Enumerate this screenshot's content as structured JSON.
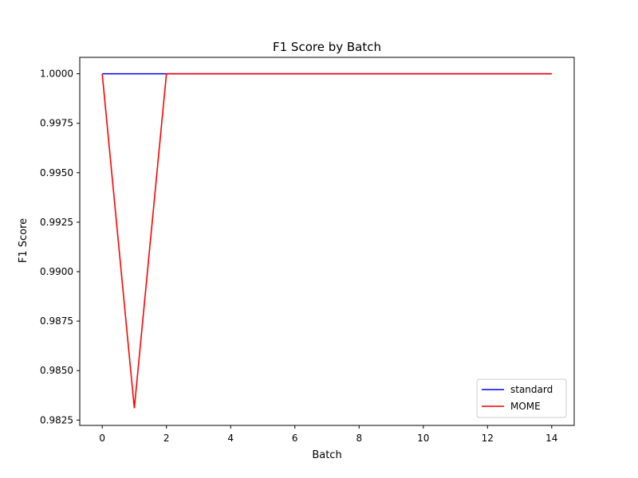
{
  "chart_data": {
    "type": "line",
    "title": "F1 Score by Batch",
    "xlabel": "Batch",
    "ylabel": "F1 Score",
    "xlim": [
      -0.7,
      14.7
    ],
    "ylim": [
      0.98223,
      1.00083
    ],
    "xticks": [
      0,
      2,
      4,
      6,
      8,
      10,
      12,
      14
    ],
    "xtick_labels": [
      "0",
      "2",
      "4",
      "6",
      "8",
      "10",
      "12",
      "14"
    ],
    "yticks": [
      0.9825,
      0.985,
      0.9875,
      0.99,
      0.9925,
      0.995,
      0.9975,
      1.0
    ],
    "ytick_labels": [
      "0.9825",
      "0.9850",
      "0.9875",
      "0.9900",
      "0.9925",
      "0.9950",
      "0.9975",
      "1.0000"
    ],
    "grid": false,
    "legend_position": "lower-right",
    "x": [
      0,
      1,
      2,
      3,
      4,
      5,
      6,
      7,
      8,
      9,
      10,
      11,
      12,
      13,
      14
    ],
    "series": [
      {
        "name": "standard",
        "color": "#0000ff",
        "values": [
          1.0,
          1.0,
          1.0,
          1.0,
          1.0,
          1.0,
          1.0,
          1.0,
          1.0,
          1.0,
          1.0,
          1.0,
          1.0,
          1.0,
          1.0
        ]
      },
      {
        "name": "MOME",
        "color": "#ff0000",
        "values": [
          1.0,
          0.9831,
          1.0,
          1.0,
          1.0,
          1.0,
          1.0,
          1.0,
          1.0,
          1.0,
          1.0,
          1.0,
          1.0,
          1.0,
          1.0
        ]
      }
    ]
  }
}
